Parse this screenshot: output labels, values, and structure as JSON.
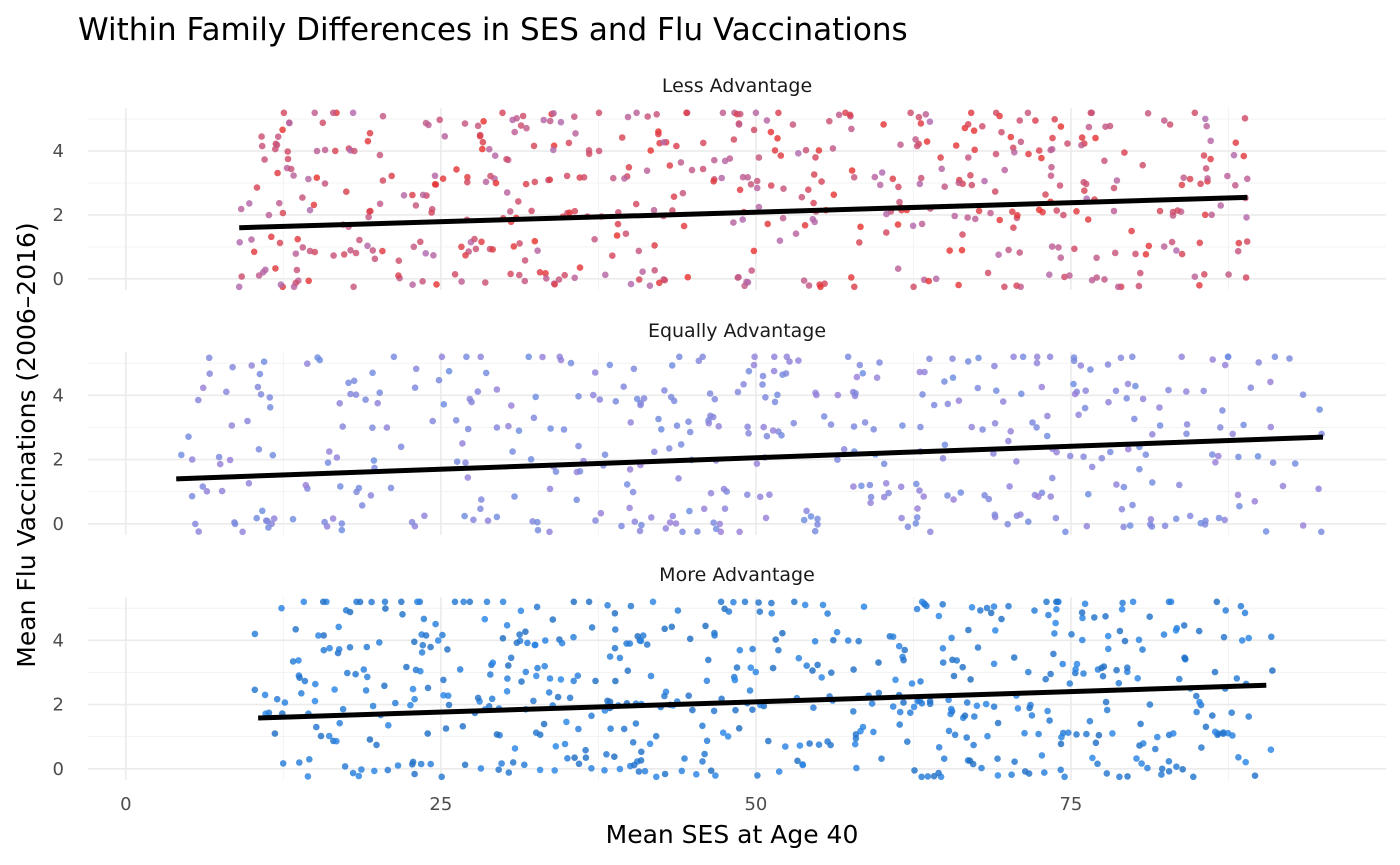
{
  "chart_data": {
    "type": "scatter",
    "title": "Within Family Differences in SES and Flu Vaccinations",
    "xlabel": "Mean SES at Age 40",
    "ylabel": "Mean Flu Vaccinations (2006–2016)",
    "xlim": [
      -3,
      100
    ],
    "ylim": [
      -0.35,
      5.35
    ],
    "x_ticks": [
      "0",
      "25",
      "50",
      "75"
    ],
    "y_ticks": [
      "0",
      "2",
      "4"
    ],
    "grid": true,
    "legend": "none",
    "facets": [
      {
        "label": "Less Advantage",
        "color_low": "#b06ab0",
        "color_high": "#e8332f",
        "fit": {
          "x": [
            9,
            89
          ],
          "y": [
            1.6,
            2.55
          ]
        },
        "seed": 11,
        "n_points": 520,
        "x_range": [
          9,
          89
        ]
      },
      {
        "label": "Equally Advantage",
        "color_low": "#9a7fd8",
        "color_high": "#6b8de0",
        "fit": {
          "x": [
            4,
            95
          ],
          "y": [
            1.4,
            2.7
          ]
        },
        "seed": 23,
        "n_points": 430,
        "x_range": [
          4,
          95
        ]
      },
      {
        "label": "More Advantage",
        "color_low": "#2a86e8",
        "color_high": "#1f6cc0",
        "fit": {
          "x": [
            10.5,
            90.5
          ],
          "y": [
            1.58,
            2.6
          ]
        },
        "seed": 37,
        "n_points": 560,
        "x_range": [
          10,
          91
        ]
      }
    ]
  }
}
